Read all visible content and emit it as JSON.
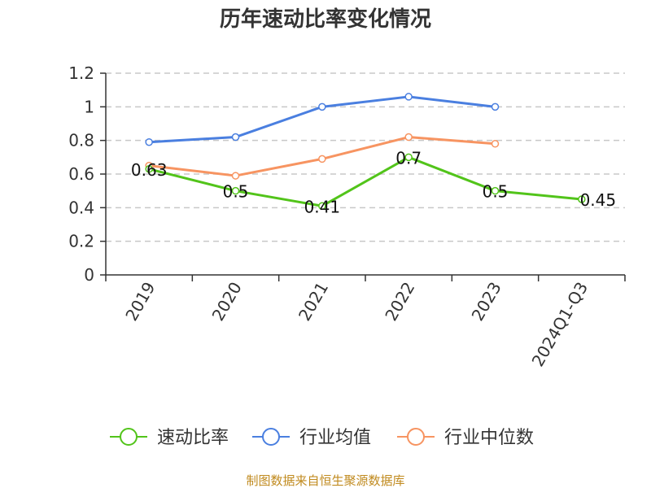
{
  "chart_data": {
    "type": "line",
    "title": "历年速动比率变化情况",
    "categories": [
      "2019",
      "2020",
      "2021",
      "2022",
      "2023",
      "2024Q1-Q3"
    ],
    "ylim": [
      0,
      1.2
    ],
    "yticks": [
      "0",
      "0.2",
      "0.4",
      "0.6",
      "0.8",
      "1",
      "1.2"
    ],
    "grid": true,
    "legend": "bottom",
    "series": [
      {
        "name": "速动比率",
        "color": "#52c41a",
        "values": [
          0.63,
          0.5,
          0.41,
          0.7,
          0.5,
          0.45
        ],
        "labels": [
          "0.63",
          "0.5",
          "0.41",
          "0.7",
          "0.5",
          "0.45"
        ]
      },
      {
        "name": "行业均值",
        "color": "#4a7fe0",
        "values": [
          0.79,
          0.82,
          1.0,
          1.06,
          1.0,
          null
        ]
      },
      {
        "name": "行业中位数",
        "color": "#f79461",
        "values": [
          0.65,
          0.59,
          0.69,
          0.82,
          0.78,
          null
        ]
      }
    ],
    "source": "制图数据来自恒生聚源数据库"
  }
}
